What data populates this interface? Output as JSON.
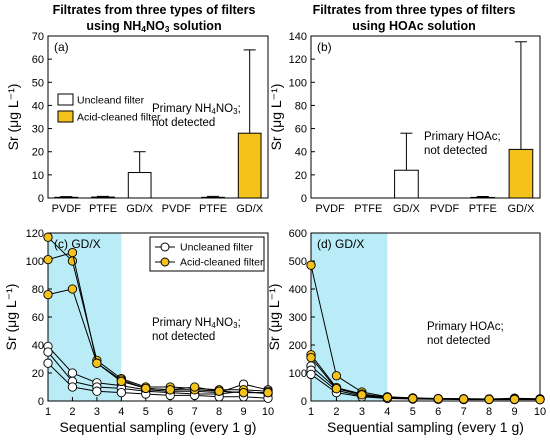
{
  "colors": {
    "acid": "#f5c21b",
    "uncleaned": "#ffffff",
    "highlight": "#b9ecf7",
    "stroke": "#000000"
  },
  "chart_data": [
    {
      "id": "a",
      "type": "bar",
      "panel_label": "(a)",
      "title_line1": "Filtrates from three types of filters",
      "title_line2_prefix": "using NH",
      "title_line2_sub1": "4",
      "title_line2_mid": "NO",
      "title_line2_sub2": "3",
      "title_line2_suffix": " solution",
      "ylabel": "Sr (μg L⁻¹)",
      "ylim": [
        0,
        70
      ],
      "yticks": [
        0,
        10,
        20,
        30,
        40,
        50,
        60,
        70
      ],
      "categories": [
        "PVDF",
        "PTFE",
        "GD/X",
        "PVDF",
        "PTFE",
        "GD/X"
      ],
      "values": [
        0.3,
        0.4,
        11,
        0,
        0.3,
        28
      ],
      "errors": [
        0.3,
        0.3,
        9,
        0,
        0.4,
        36
      ],
      "series_of_bar": [
        "uncleaned",
        "uncleaned",
        "uncleaned",
        "acid",
        "acid",
        "acid"
      ],
      "legend": [
        "Uncleand filter",
        "Acid-cleaned filter"
      ],
      "note_line1_prefix": "Primary NH",
      "note_line1_sub1": "4",
      "note_line1_mid": "NO",
      "note_line1_sub2": "3",
      "note_line1_suffix": ";",
      "note_line2": "not detected"
    },
    {
      "id": "b",
      "type": "bar",
      "panel_label": "(b)",
      "title_line1": "Filtrates from three types of filters",
      "title_line2": "using HOAc solution",
      "ylabel": "Sr (μg L⁻¹)",
      "ylim": [
        0,
        140
      ],
      "yticks": [
        0,
        20,
        40,
        60,
        80,
        100,
        120,
        140
      ],
      "categories": [
        "PVDF",
        "PTFE",
        "GD/X",
        "PVDF",
        "PTFE",
        "GD/X"
      ],
      "values": [
        0,
        0,
        24,
        0,
        0.5,
        42
      ],
      "errors": [
        0,
        0,
        32,
        0,
        0.8,
        93
      ],
      "series_of_bar": [
        "uncleaned",
        "uncleaned",
        "uncleaned",
        "acid",
        "acid",
        "acid"
      ],
      "note_line1": "Primary HOAc;",
      "note_line2": "not detected"
    },
    {
      "id": "c",
      "type": "line",
      "panel_label": "(c) GD/X",
      "ylabel": "Sr (μg L⁻¹)",
      "xlabel": "Sequential sampling (every 1 g)",
      "ylim": [
        0,
        120
      ],
      "yticks": [
        0,
        20,
        40,
        60,
        80,
        100,
        120
      ],
      "xlim": [
        1,
        10
      ],
      "xticks": [
        1,
        2,
        3,
        4,
        5,
        6,
        7,
        8,
        9,
        10
      ],
      "shade_x": [
        1,
        4
      ],
      "legend": [
        "Uncleaned filter",
        "Acid-cleaned filter"
      ],
      "note_line1_prefix": "Primary NH",
      "note_line1_sub1": "4",
      "note_line1_mid": "NO",
      "note_line1_sub2": "3",
      "note_line1_suffix": ";",
      "note_line2": "not detected",
      "series": [
        {
          "name": "Uncleaned filter",
          "kind": "uncleaned",
          "x": [
            1,
            2,
            3,
            4,
            5,
            6,
            7,
            8,
            9,
            10
          ],
          "y": [
            39,
            20,
            13,
            11,
            8,
            7,
            7,
            6,
            12,
            8
          ]
        },
        {
          "name": "Uncleaned filter",
          "kind": "uncleaned",
          "x": [
            1,
            2,
            3,
            4,
            5,
            6,
            7,
            8,
            9,
            10
          ],
          "y": [
            35,
            14,
            10,
            9,
            7,
            6,
            5,
            5,
            7,
            5
          ]
        },
        {
          "name": "Uncleaned filter",
          "kind": "uncleaned",
          "x": [
            1,
            2,
            3,
            4,
            5,
            6,
            7,
            8,
            9,
            10
          ],
          "y": [
            27,
            10,
            7,
            6,
            5,
            4,
            4,
            3,
            3,
            2
          ]
        },
        {
          "name": "Acid-cleaned filter",
          "kind": "acid",
          "x": [
            1,
            2,
            3,
            4,
            5,
            6,
            7,
            8,
            9,
            10
          ],
          "y": [
            117,
            100,
            29,
            16,
            10,
            10,
            9,
            8,
            8,
            7
          ]
        },
        {
          "name": "Acid-cleaned filter",
          "kind": "acid",
          "x": [
            1,
            2,
            3,
            4,
            5,
            6,
            7,
            8,
            9,
            10
          ],
          "y": [
            101,
            106,
            27,
            15,
            9,
            8,
            8,
            7,
            6,
            6
          ]
        },
        {
          "name": "Acid-cleaned filter",
          "kind": "acid",
          "x": [
            1,
            2,
            3,
            4,
            5,
            6,
            7,
            8,
            9,
            10
          ],
          "y": [
            76,
            80,
            27,
            14,
            9,
            8,
            10,
            7,
            6,
            6
          ]
        }
      ]
    },
    {
      "id": "d",
      "type": "line",
      "panel_label": "(d) GD/X",
      "ylabel": "Sr (μg L⁻¹)",
      "xlabel": "Sequential sampling (every 1 g)",
      "ylim": [
        0,
        600
      ],
      "yticks": [
        0,
        100,
        200,
        300,
        400,
        500,
        600
      ],
      "xlim": [
        1,
        10
      ],
      "xticks": [
        1,
        2,
        3,
        4,
        5,
        6,
        7,
        8,
        9,
        10
      ],
      "shade_x": [
        1,
        4
      ],
      "note_line1": "Primary HOAc;",
      "note_line2": "not detected",
      "series": [
        {
          "name": "Uncleaned filter",
          "kind": "uncleaned",
          "x": [
            1,
            2,
            3,
            4,
            5,
            6,
            7,
            8,
            9,
            10
          ],
          "y": [
            125,
            45,
            22,
            13,
            10,
            8,
            8,
            7,
            10,
            8
          ]
        },
        {
          "name": "Uncleaned filter",
          "kind": "uncleaned",
          "x": [
            1,
            2,
            3,
            4,
            5,
            6,
            7,
            8,
            9,
            10
          ],
          "y": [
            110,
            38,
            18,
            11,
            9,
            7,
            6,
            6,
            7,
            6
          ]
        },
        {
          "name": "Uncleaned filter",
          "kind": "uncleaned",
          "x": [
            1,
            2,
            3,
            4,
            5,
            6,
            7,
            8,
            9,
            10
          ],
          "y": [
            95,
            30,
            15,
            9,
            7,
            6,
            5,
            5,
            5,
            5
          ]
        },
        {
          "name": "Acid-cleaned filter",
          "kind": "acid",
          "x": [
            1,
            2,
            3,
            4,
            5,
            6,
            7,
            8,
            9,
            10
          ],
          "y": [
            485,
            90,
            32,
            15,
            11,
            9,
            8,
            7,
            7,
            6
          ]
        },
        {
          "name": "Acid-cleaned filter",
          "kind": "acid",
          "x": [
            1,
            2,
            3,
            4,
            5,
            6,
            7,
            8,
            9,
            10
          ],
          "y": [
            165,
            48,
            25,
            14,
            10,
            8,
            7,
            7,
            6,
            6
          ]
        },
        {
          "name": "Acid-cleaned filter",
          "kind": "acid",
          "x": [
            1,
            2,
            3,
            4,
            5,
            6,
            7,
            8,
            9,
            10
          ],
          "y": [
            155,
            44,
            22,
            13,
            9,
            8,
            7,
            6,
            6,
            5
          ]
        }
      ]
    }
  ]
}
